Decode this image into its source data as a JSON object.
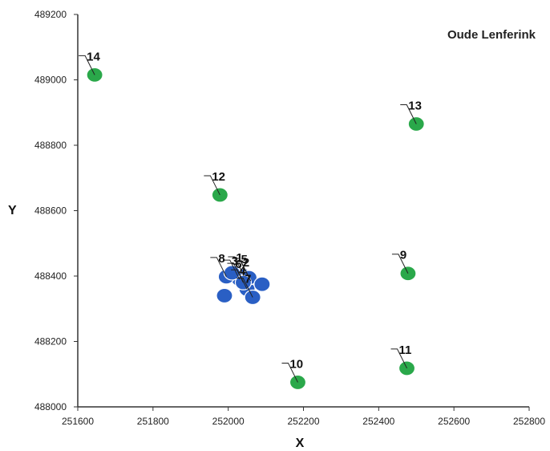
{
  "chart_data": {
    "type": "scatter",
    "title": "Oude Lenferink",
    "xlabel": "X",
    "ylabel": "Y",
    "xlim": [
      251600,
      252800
    ],
    "ylim": [
      488000,
      489200
    ],
    "x_ticks": [
      251600,
      251800,
      252000,
      252200,
      252400,
      252600,
      252800
    ],
    "y_ticks": [
      488000,
      488200,
      488400,
      488600,
      488800,
      489000,
      489200
    ],
    "grid": false,
    "series": [
      {
        "color": "#2a5fc4",
        "points": [
          {
            "label": "1",
            "x": 252042,
            "y": 488400
          },
          {
            "label": "2",
            "x": 252060,
            "y": 488385
          },
          {
            "label": "3",
            "x": 252030,
            "y": 488390
          },
          {
            "label": "4",
            "x": 252050,
            "y": 488360
          },
          {
            "label": "5",
            "x": 252055,
            "y": 488395
          },
          {
            "label": "6",
            "x": 252040,
            "y": 488380
          },
          {
            "label": "7",
            "x": 252065,
            "y": 488335
          },
          {
            "label": "8",
            "x": 251995,
            "y": 488398
          },
          {
            "label": "",
            "x": 252090,
            "y": 488375
          },
          {
            "label": "",
            "x": 251990,
            "y": 488340
          },
          {
            "label": "",
            "x": 252010,
            "y": 488410
          }
        ]
      },
      {
        "color": "#2aa84a",
        "points": [
          {
            "label": "9",
            "x": 252478,
            "y": 488408
          },
          {
            "label": "10",
            "x": 252185,
            "y": 488075
          },
          {
            "label": "11",
            "x": 252475,
            "y": 488118
          },
          {
            "label": "12",
            "x": 251978,
            "y": 488648
          },
          {
            "label": "13",
            "x": 252500,
            "y": 488865
          },
          {
            "label": "14",
            "x": 251645,
            "y": 489015
          }
        ]
      }
    ]
  }
}
